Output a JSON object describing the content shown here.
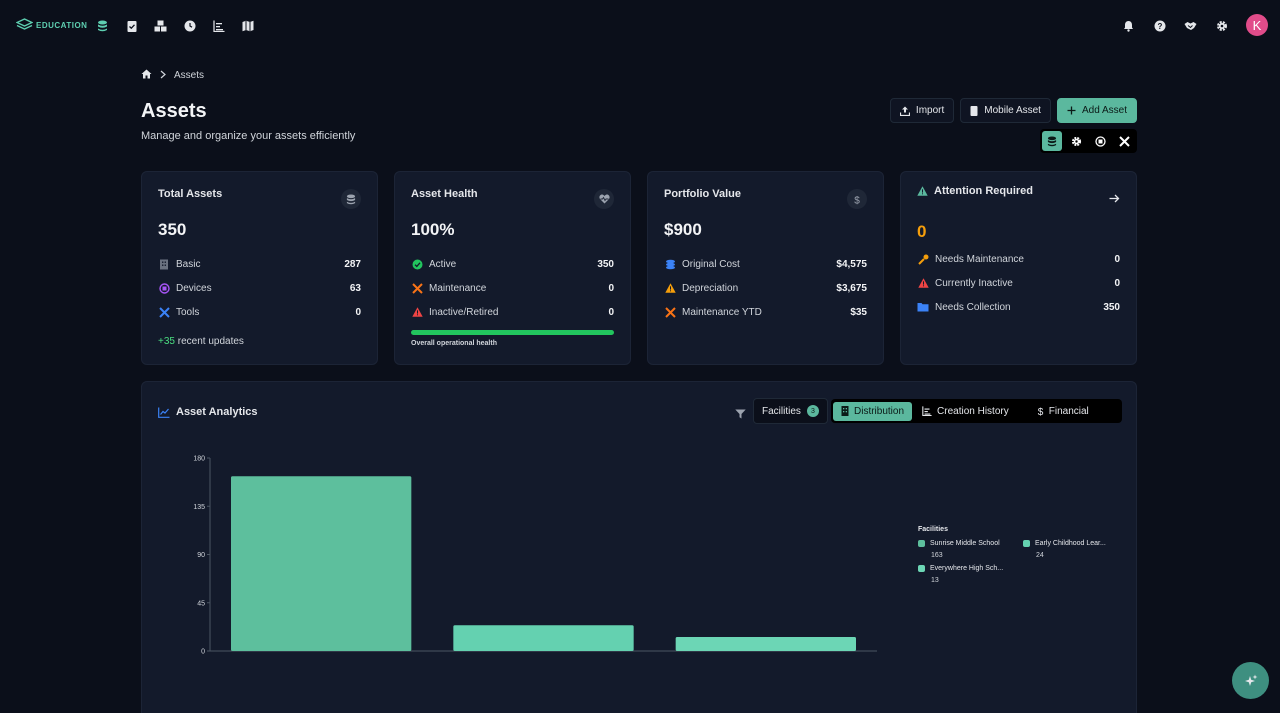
{
  "brand": {
    "logo_text": "EDUCATION",
    "accent": "#5bb89e"
  },
  "nav": {
    "icons": [
      "database-icon",
      "clipboard-check-icon",
      "boxes-icon",
      "clock-icon",
      "list-chart-icon",
      "map-icon"
    ]
  },
  "header_right": {
    "icons": [
      "bell-icon",
      "help-icon",
      "handshake-icon",
      "gear-icon"
    ],
    "avatar_initial": "K"
  },
  "breadcrumb": {
    "current": "Assets"
  },
  "page": {
    "title": "Assets",
    "subtitle": "Manage and organize your assets efficiently"
  },
  "actions": {
    "import_label": "Import",
    "mobile_label": "Mobile Asset",
    "add_label": "Add Asset"
  },
  "cards": {
    "total": {
      "title": "Total Assets",
      "value": "350",
      "rows": [
        {
          "label": "Basic",
          "value": "287"
        },
        {
          "label": "Devices",
          "value": "63"
        },
        {
          "label": "Tools",
          "value": "0"
        }
      ],
      "recent_count": "+35",
      "recent_label": "recent updates"
    },
    "health": {
      "title": "Asset Health",
      "value": "100%",
      "rows": [
        {
          "label": "Active",
          "value": "350"
        },
        {
          "label": "Maintenance",
          "value": "0"
        },
        {
          "label": "Inactive/Retired",
          "value": "0"
        }
      ],
      "bar_fraction": 1.0,
      "bar_label": "Overall operational health"
    },
    "portfolio": {
      "title": "Portfolio Value",
      "value": "$900",
      "rows": [
        {
          "label": "Original Cost",
          "value": "$4,575"
        },
        {
          "label": "Depreciation",
          "value": "$3,675"
        },
        {
          "label": "Maintenance YTD",
          "value": "$35"
        }
      ]
    },
    "attention": {
      "title": "Attention Required",
      "value": "0",
      "rows": [
        {
          "label": "Needs Maintenance",
          "value": "0"
        },
        {
          "label": "Currently Inactive",
          "value": "0"
        },
        {
          "label": "Needs Collection",
          "value": "350"
        }
      ]
    }
  },
  "analytics": {
    "title": "Asset Analytics",
    "filter_label": "Facilities",
    "filter_count": "3",
    "tabs": [
      {
        "label": "Distribution",
        "active": true
      },
      {
        "label": "Creation History",
        "active": false
      },
      {
        "label": "Financial",
        "active": false
      }
    ],
    "legend_title": "Facilities",
    "legend": [
      {
        "name": "Sunrise Middle School",
        "value": "163"
      },
      {
        "name": "Early Childhood Lear...",
        "value": "24"
      },
      {
        "name": "Everywhere High Sch...",
        "value": "13"
      }
    ]
  },
  "chart_data": {
    "type": "bar",
    "categories": [
      "Sunrise Middle School",
      "Early Childhood Lear...",
      "Everywhere High Sch..."
    ],
    "values": [
      163,
      24,
      13
    ],
    "yticks": [
      0,
      45,
      90,
      135,
      180
    ],
    "ylim": [
      0,
      180
    ],
    "colors": [
      "#5dbf9d",
      "#64d1b0",
      "#6cd6b5"
    ],
    "grid": false
  }
}
